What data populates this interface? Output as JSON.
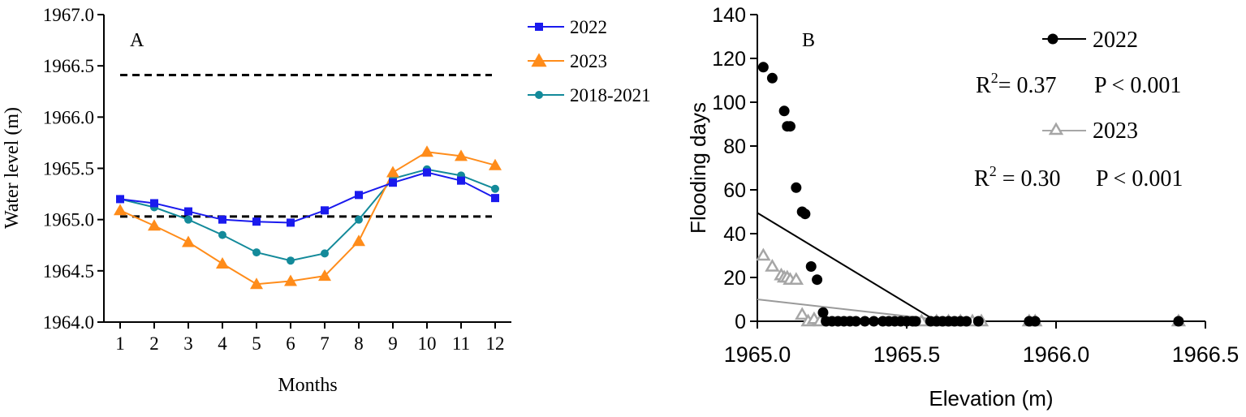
{
  "chart_data": [
    {
      "panel_label": "A",
      "type": "line",
      "xlabel": "Months",
      "ylabel": "Water level (m)",
      "categories": [
        1,
        2,
        3,
        4,
        5,
        6,
        7,
        8,
        9,
        10,
        11,
        12
      ],
      "xtick_labels": [
        "1",
        "2",
        "3",
        "4",
        "5",
        "6",
        "7",
        "8",
        "9",
        "10",
        "11",
        "12"
      ],
      "ylim": [
        1964.0,
        1967.0
      ],
      "yticks": [
        1964.0,
        1964.5,
        1965.0,
        1965.5,
        1966.0,
        1966.5,
        1967.0
      ],
      "ytick_labels": [
        "1964.0",
        "1964.5",
        "1965.0",
        "1965.5",
        "1966.0",
        "1966.5",
        "1967.0"
      ],
      "reference_lines": [
        1966.41,
        1965.03
      ],
      "grid": false,
      "legend_position": "outside-right",
      "series": [
        {
          "name": "2022",
          "color": "#1a1aee",
          "marker": "square",
          "values": [
            1965.2,
            1965.16,
            1965.08,
            1965.0,
            1964.98,
            1964.97,
            1965.09,
            1965.24,
            1965.36,
            1965.46,
            1965.38,
            1965.21
          ]
        },
        {
          "name": "2023",
          "color": "#ff8c1a",
          "marker": "triangle",
          "values": [
            1965.09,
            1964.94,
            1964.78,
            1964.57,
            1964.37,
            1964.4,
            1964.45,
            1964.79,
            1965.46,
            1965.66,
            1965.62,
            1965.53
          ]
        },
        {
          "name": "2018-2021",
          "color": "#138a9a",
          "marker": "circle",
          "values": [
            1965.2,
            1965.12,
            1965.0,
            1964.85,
            1964.68,
            1964.6,
            1964.67,
            1965.0,
            1965.4,
            1965.49,
            1965.43,
            1965.3
          ]
        }
      ]
    },
    {
      "panel_label": "B",
      "type": "scatter",
      "xlabel": "Elevation (m)",
      "ylabel": "Flooding days",
      "xlim": [
        1965.0,
        1966.5
      ],
      "ylim": [
        0,
        140
      ],
      "xticks": [
        1965.0,
        1965.5,
        1966.0,
        1966.5
      ],
      "xtick_labels": [
        "1965.0",
        "1965.5",
        "1966.0",
        "1966.5"
      ],
      "yticks": [
        0,
        20,
        40,
        60,
        80,
        100,
        120,
        140
      ],
      "ytick_labels": [
        "0",
        "20",
        "40",
        "60",
        "80",
        "100",
        "120",
        "140"
      ],
      "grid": false,
      "legend_position": "top-right",
      "series": [
        {
          "name": "2022",
          "color": "#000000",
          "marker": "filled-circle",
          "stat_r2_prefix": "R",
          "stat_r2_sup": "2",
          "stat_r2_value": "= 0.37",
          "stat_p": "P < 0.001",
          "fit_line": {
            "x": [
              1965.0,
              1965.6
            ],
            "y": [
              49.5,
              0
            ]
          },
          "points": [
            [
              1965.02,
              116
            ],
            [
              1965.05,
              111
            ],
            [
              1965.09,
              96
            ],
            [
              1965.1,
              89
            ],
            [
              1965.11,
              89
            ],
            [
              1965.13,
              61
            ],
            [
              1965.15,
              50
            ],
            [
              1965.16,
              49
            ],
            [
              1965.18,
              25
            ],
            [
              1965.2,
              19
            ],
            [
              1965.22,
              4
            ],
            [
              1965.23,
              0
            ],
            [
              1965.25,
              0
            ],
            [
              1965.27,
              0
            ],
            [
              1965.29,
              0
            ],
            [
              1965.31,
              0
            ],
            [
              1965.33,
              0
            ],
            [
              1965.36,
              0
            ],
            [
              1965.39,
              0
            ],
            [
              1965.42,
              0
            ],
            [
              1965.44,
              0
            ],
            [
              1965.46,
              0
            ],
            [
              1965.48,
              0
            ],
            [
              1965.5,
              0
            ],
            [
              1965.52,
              0
            ],
            [
              1965.53,
              0
            ],
            [
              1965.58,
              0
            ],
            [
              1965.6,
              0
            ],
            [
              1965.62,
              0
            ],
            [
              1965.64,
              0
            ],
            [
              1965.66,
              0
            ],
            [
              1965.68,
              0
            ],
            [
              1965.7,
              0
            ],
            [
              1965.74,
              0
            ],
            [
              1965.91,
              0
            ],
            [
              1965.93,
              0
            ],
            [
              1966.41,
              0
            ]
          ]
        },
        {
          "name": "2023",
          "color": "#a6a6a6",
          "marker": "open-triangle",
          "stat_r2_prefix": "R",
          "stat_r2_sup": "2",
          "stat_r2_value": " = 0.30",
          "stat_p": "P < 0.001",
          "fit_line": {
            "x": [
              1965.0,
              1965.65
            ],
            "y": [
              10,
              0
            ]
          },
          "points": [
            [
              1965.02,
              30
            ],
            [
              1965.05,
              25
            ],
            [
              1965.08,
              21
            ],
            [
              1965.09,
              20
            ],
            [
              1965.1,
              20
            ],
            [
              1965.11,
              19
            ],
            [
              1965.13,
              19
            ],
            [
              1965.15,
              3
            ],
            [
              1965.17,
              0
            ],
            [
              1965.19,
              1
            ],
            [
              1965.21,
              0
            ],
            [
              1965.55,
              0
            ],
            [
              1965.6,
              0
            ],
            [
              1965.64,
              0
            ],
            [
              1965.68,
              0
            ],
            [
              1965.72,
              0
            ],
            [
              1965.75,
              0
            ],
            [
              1965.91,
              0
            ],
            [
              1965.93,
              0
            ],
            [
              1966.41,
              0
            ]
          ]
        }
      ]
    }
  ]
}
